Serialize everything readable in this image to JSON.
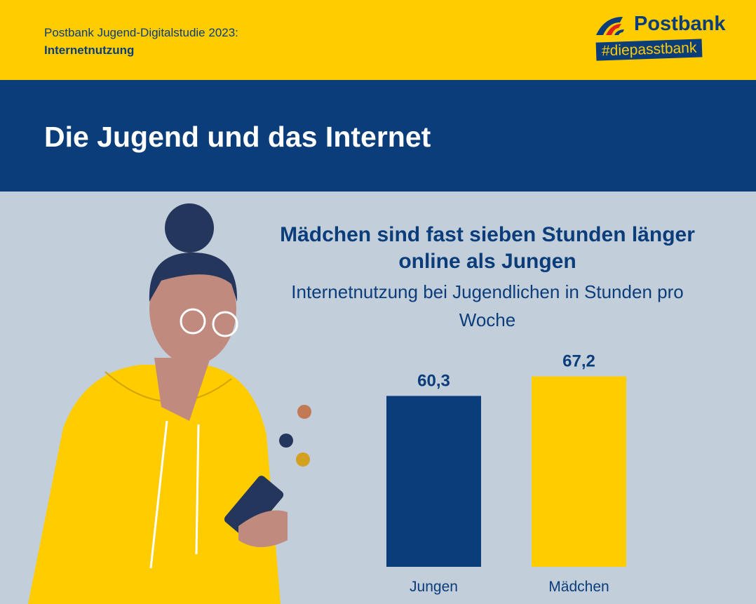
{
  "header": {
    "study": "Postbank Jugend-Digitalstudie 2023:",
    "topic": "Internetnutzung"
  },
  "logo": {
    "name": "Postbank",
    "tagline": "#diepasstbank"
  },
  "title": "Die Jugend und das Internet",
  "colors": {
    "yellow": "#ffcc00",
    "blue": "#0a3d7a",
    "background": "#c3cedb"
  },
  "chart_data": {
    "type": "bar",
    "title": "Mädchen sind fast sieben Stunden länger online als Jungen",
    "subtitle": "Internetnutzung bei Jugendlichen in Stunden pro Woche",
    "categories": [
      "Jungen",
      "Mädchen"
    ],
    "values": [
      60.3,
      67.2
    ],
    "labels": [
      "60,3",
      "67,2"
    ],
    "colors": [
      "#0a3d7a",
      "#ffcc00"
    ],
    "ylim": [
      0,
      75
    ],
    "grid": false
  }
}
